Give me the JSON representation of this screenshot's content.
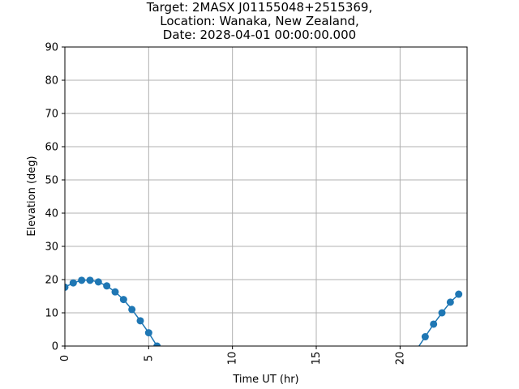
{
  "chart_data": {
    "type": "line",
    "title": [
      "Target: 2MASX J01155048+2515369,",
      "Location: Wanaka, New Zealand,",
      "Date: 2028-04-01 00:00:00.000"
    ],
    "xlabel": "Time UT (hr)",
    "ylabel": "Elevation (deg)",
    "xlim": [
      0,
      24
    ],
    "ylim": [
      0,
      90
    ],
    "xticks": [
      0,
      5,
      10,
      15,
      20
    ],
    "yticks": [
      0,
      10,
      20,
      30,
      40,
      50,
      60,
      70,
      80,
      90
    ],
    "grid": true,
    "marker": "circle",
    "color": "#1f77b4",
    "segments": [
      {
        "x": [
          0,
          0.5,
          1,
          1.5,
          2,
          2.5,
          3,
          3.5,
          4,
          4.5,
          5,
          5.5
        ],
        "y": [
          17.7,
          19.0,
          19.8,
          19.8,
          19.3,
          18.1,
          16.3,
          14.0,
          11.0,
          7.6,
          4.0,
          0.0
        ]
      },
      {
        "x": [
          21.0,
          21.5,
          22,
          22.5,
          23,
          23.5
        ],
        "y": [
          -1.0,
          2.8,
          6.6,
          10.0,
          13.2,
          15.6
        ]
      }
    ]
  }
}
